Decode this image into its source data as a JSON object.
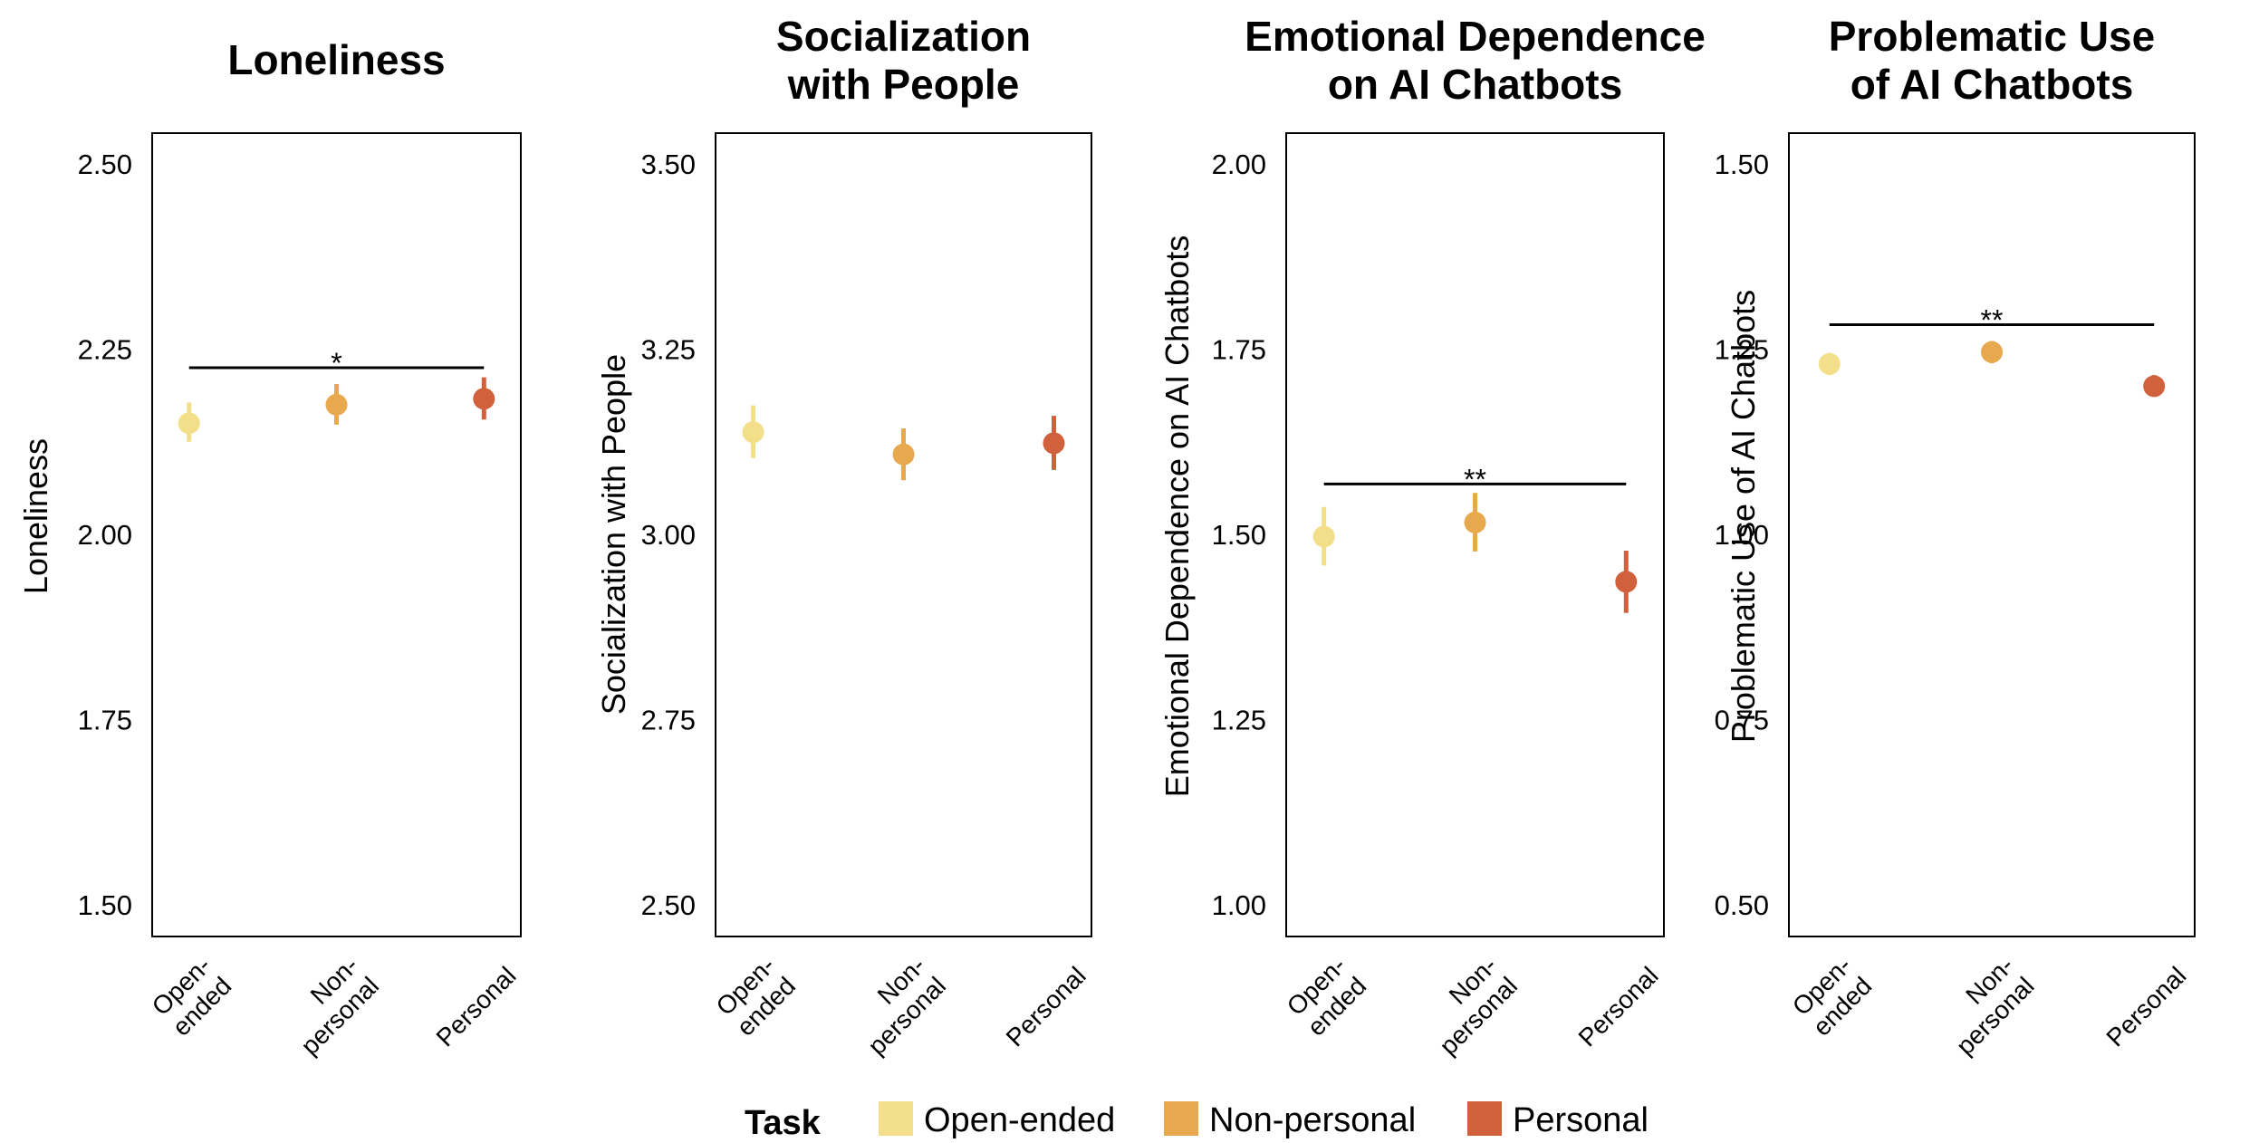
{
  "chart_data": [
    {
      "type": "scatter",
      "title_lines": [
        "Loneliness"
      ],
      "ylabel": "Loneliness",
      "ylim": [
        1.5,
        2.5
      ],
      "yticks": [
        "1.50",
        "1.75",
        "2.00",
        "2.25",
        "2.50"
      ],
      "categories": [
        "Open-ended",
        "Non-personal",
        "Personal"
      ],
      "points": [
        {
          "category": "Open-ended",
          "mean": 2.15,
          "lower": 2.125,
          "upper": 2.178
        },
        {
          "category": "Non-personal",
          "mean": 2.175,
          "lower": 2.148,
          "upper": 2.203
        },
        {
          "category": "Personal",
          "mean": 2.183,
          "lower": 2.155,
          "upper": 2.212
        }
      ],
      "significance": {
        "label": "*",
        "y": 2.225,
        "from": "Open-ended",
        "to": "Personal"
      }
    },
    {
      "type": "scatter",
      "title_lines": [
        "Socialization",
        "with People"
      ],
      "ylabel": "Socialization with People",
      "ylim": [
        2.5,
        3.5
      ],
      "yticks": [
        "2.50",
        "2.75",
        "3.00",
        "3.25",
        "3.50"
      ],
      "categories": [
        "Open-ended",
        "Non-personal",
        "Personal"
      ],
      "points": [
        {
          "category": "Open-ended",
          "mean": 3.138,
          "lower": 3.103,
          "upper": 3.174
        },
        {
          "category": "Non-personal",
          "mean": 3.108,
          "lower": 3.073,
          "upper": 3.143
        },
        {
          "category": "Personal",
          "mean": 3.123,
          "lower": 3.087,
          "upper": 3.16
        }
      ],
      "significance": null
    },
    {
      "type": "scatter",
      "title_lines": [
        "Emotional Dependence",
        "on AI Chatbots"
      ],
      "ylabel": "Emotional Dependence on AI Chatbots",
      "ylim": [
        1.0,
        2.0
      ],
      "yticks": [
        "1.00",
        "1.25",
        "1.50",
        "1.75",
        "2.00"
      ],
      "categories": [
        "Open-ended",
        "Non-personal",
        "Personal"
      ],
      "points": [
        {
          "category": "Open-ended",
          "mean": 1.497,
          "lower": 1.458,
          "upper": 1.537
        },
        {
          "category": "Non-personal",
          "mean": 1.516,
          "lower": 1.477,
          "upper": 1.556
        },
        {
          "category": "Personal",
          "mean": 1.436,
          "lower": 1.394,
          "upper": 1.478
        }
      ],
      "significance": {
        "label": "**",
        "y": 1.568,
        "from": "Open-ended",
        "to": "Personal"
      }
    },
    {
      "type": "scatter",
      "title_lines": [
        "Problematic Use",
        "of AI Chatbots"
      ],
      "ylabel": "Problematic Use of AI Chatbots",
      "ylim": [
        0.5,
        1.5
      ],
      "yticks": [
        "0.50",
        "0.75",
        "1.00",
        "1.25",
        "1.50"
      ],
      "categories": [
        "Open-ended",
        "Non-personal",
        "Personal"
      ],
      "points": [
        {
          "category": "Open-ended",
          "mean": 1.23,
          "lower": 1.215,
          "upper": 1.245
        },
        {
          "category": "Non-personal",
          "mean": 1.246,
          "lower": 1.231,
          "upper": 1.261
        },
        {
          "category": "Personal",
          "mean": 1.2,
          "lower": 1.186,
          "upper": 1.215
        }
      ],
      "significance": {
        "label": "**",
        "y": 1.283,
        "from": "Open-ended",
        "to": "Personal"
      }
    }
  ],
  "xtick_lines": [
    [
      "Open-",
      "ended"
    ],
    [
      "Non-",
      "personal"
    ],
    [
      "Personal"
    ]
  ],
  "legend": {
    "title": "Task",
    "items": [
      {
        "label": "Open-ended",
        "color": "#F3DE8A"
      },
      {
        "label": "Non-personal",
        "color": "#E8A84E"
      },
      {
        "label": "Personal",
        "color": "#D1603D"
      }
    ]
  }
}
